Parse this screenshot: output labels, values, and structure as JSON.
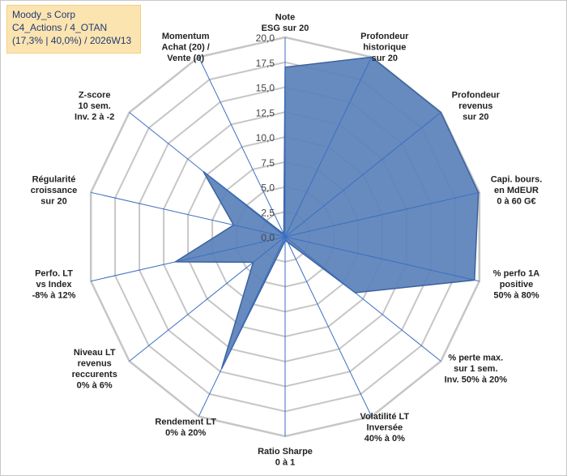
{
  "header": {
    "line1": "Moody_s Corp",
    "line2": "C4_Actions / 4_OTAN",
    "line3": "(17,3% | 40,0%) / 2026W13"
  },
  "colors": {
    "fill": "#5a81b8",
    "stroke": "#3c62a0",
    "spoke": "#3a6fc4",
    "grid": "#c6c6c6",
    "header_bg": "#fce4b0"
  },
  "chart_data": {
    "type": "radar",
    "rmin": 0,
    "rmax": 20,
    "step": 2.5,
    "ticks": [
      "0,0",
      "2,5",
      "5,0",
      "7,5",
      "10,0",
      "12,5",
      "15,0",
      "17,5",
      "20,0"
    ],
    "axes": [
      {
        "label": [
          "Note",
          "ESG sur 20"
        ],
        "value": 17.0
      },
      {
        "label": [
          "Profondeur",
          "historique",
          "sur 20"
        ],
        "value": 20.0
      },
      {
        "label": [
          "Profondeur",
          "revenus",
          "sur 20"
        ],
        "value": 20.0
      },
      {
        "label": [
          "Capi. bours.",
          "en MdEUR",
          "0 à 60 G€"
        ],
        "value": 19.9
      },
      {
        "label": [
          "% perfo 1A",
          "positive",
          "50% à 80%"
        ],
        "value": 19.5
      },
      {
        "label": [
          "% perte max.",
          "sur 1 sem.",
          "Inv. 50% à 20%"
        ],
        "value": 9.0
      },
      {
        "label": [
          "Volatilité LT",
          "Inversée",
          "40% à 0%"
        ],
        "value": 0.6
      },
      {
        "label": [
          "Ratio Sharpe",
          "0 à 1"
        ],
        "value": 0.4
      },
      {
        "label": [
          "Rendement LT",
          "0% à 20%"
        ],
        "value": 14.7
      },
      {
        "label": [
          "Niveau LT",
          "revenus",
          "reccurents",
          "0% à 6%"
        ],
        "value": 4.1
      },
      {
        "label": [
          "Perfo. LT",
          "vs Index",
          "-8% à 12%"
        ],
        "value": 11.3
      },
      {
        "label": [
          "Régularité",
          "croissance",
          "sur 20"
        ],
        "value": 5.3
      },
      {
        "label": [
          "Z-score",
          "10 sem.",
          "Inv. 2 à -2"
        ],
        "value": 10.5
      },
      {
        "label": [
          "Momentum",
          "Achat (20) /",
          "Vente (0)"
        ],
        "value": 0.3
      }
    ]
  }
}
